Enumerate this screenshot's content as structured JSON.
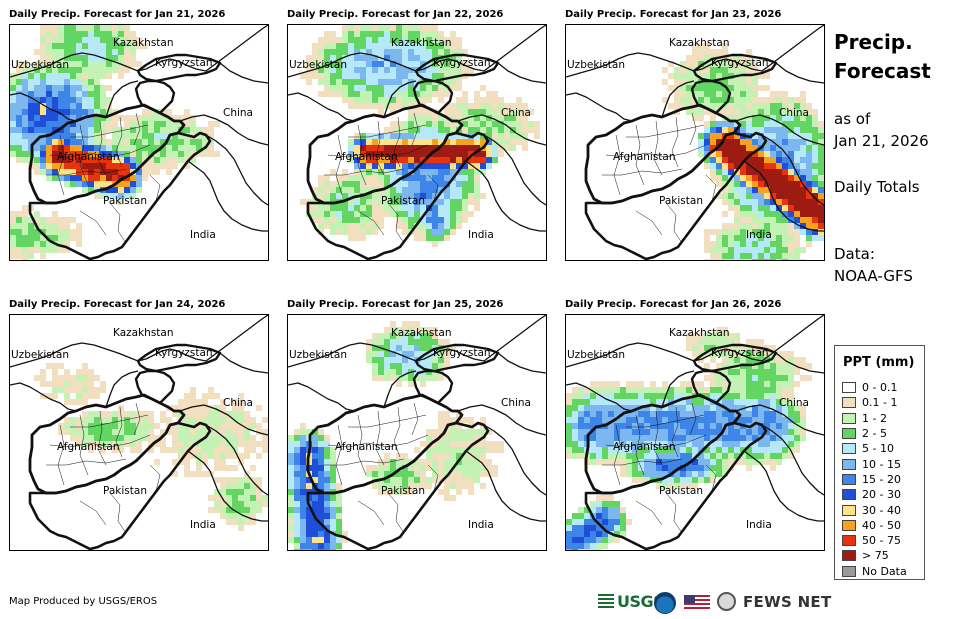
{
  "panels": [
    {
      "title": "Daily Precip. Forecast for Jan 21, 2026",
      "pattern": "jan21"
    },
    {
      "title": "Daily Precip. Forecast for Jan 22, 2026",
      "pattern": "jan22"
    },
    {
      "title": "Daily Precip. Forecast for Jan 23, 2026",
      "pattern": "jan23"
    },
    {
      "title": "Daily Precip. Forecast for Jan 24, 2026",
      "pattern": "jan24"
    },
    {
      "title": "Daily Precip. Forecast for Jan 25, 2026",
      "pattern": "jan25"
    },
    {
      "title": "Daily Precip. Forecast for Jan 26, 2026",
      "pattern": "jan26"
    }
  ],
  "country_labels": {
    "kazakhstan": "Kazakhstan",
    "uzbekistan": "Uzbekistan",
    "kyrgyzstan": "Kyrgyzstan",
    "china": "China",
    "afghanistan": "Afghanistan",
    "pakistan": "Pakistan",
    "india": "India"
  },
  "side": {
    "title_line1": "Precip.",
    "title_line2": "Forecast",
    "asof_line1": "as of",
    "asof_line2": "Jan 21, 2026",
    "totals": "Daily Totals",
    "data_line1": "Data:",
    "data_line2": "NOAA-GFS"
  },
  "legend": {
    "title": "PPT (mm)",
    "items": [
      {
        "label": "0 - 0.1",
        "color": "#ffffff"
      },
      {
        "label": "0.1 - 1",
        "color": "#f2dfbf"
      },
      {
        "label": "1 - 2",
        "color": "#c4f2b4"
      },
      {
        "label": "2 - 5",
        "color": "#63d563"
      },
      {
        "label": "5 - 10",
        "color": "#b5e9f7"
      },
      {
        "label": "10 - 15",
        "color": "#7cb7f0"
      },
      {
        "label": "15 - 20",
        "color": "#3d85e6"
      },
      {
        "label": "20 - 30",
        "color": "#1f4fd8"
      },
      {
        "label": "30 - 40",
        "color": "#fce38a"
      },
      {
        "label": "40 - 50",
        "color": "#f7a21c"
      },
      {
        "label": "50 - 75",
        "color": "#e8340c"
      },
      {
        "label": "> 75",
        "color": "#9e1b14"
      },
      {
        "label": "No Data",
        "color": "#999999"
      }
    ]
  },
  "footer": {
    "credit": "Map Produced by USGS/EROS",
    "usgs": "USGS",
    "fews": "FEWS NET"
  }
}
